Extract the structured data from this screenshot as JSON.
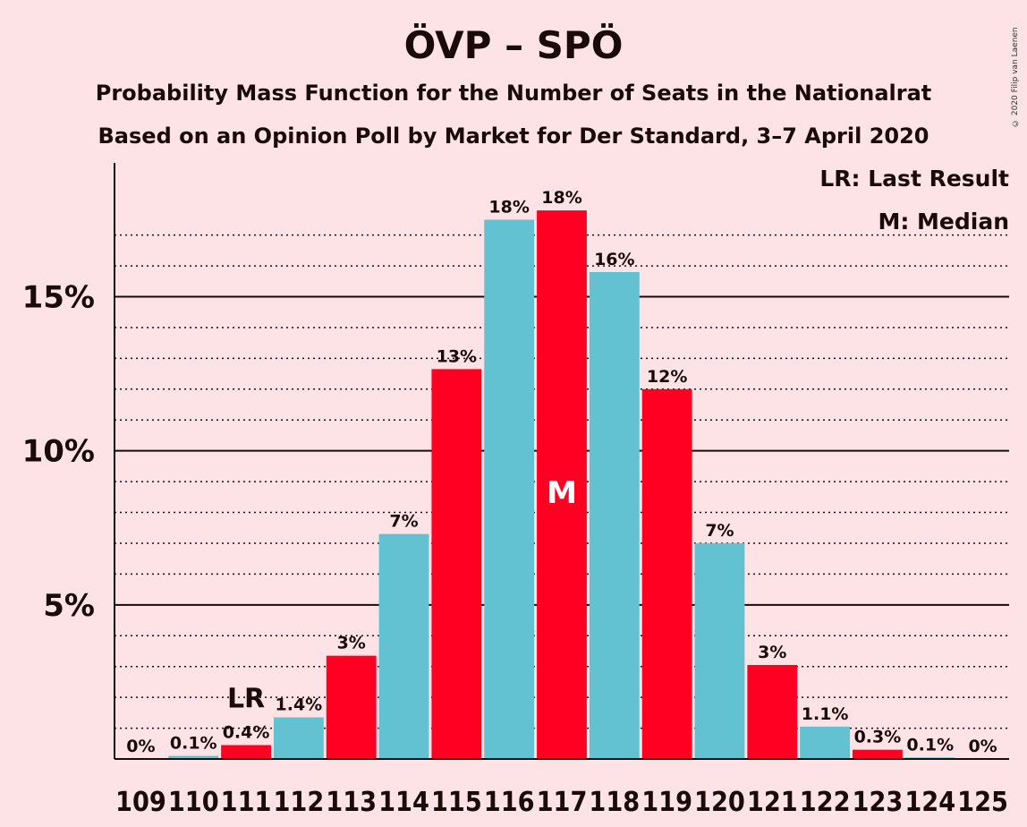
{
  "title": "ÖVP – SPÖ",
  "subtitle": "Probability Mass Function for the Number of Seats in the Nationalrat",
  "subtitle2": "Based on an Opinion Poll by Market for Der Standard, 3–7 April 2020",
  "copyright": "© 2020 Filip van Laenen",
  "legend": {
    "lr": "LR: Last Result",
    "median": "M: Median"
  },
  "colors": {
    "background": "#fde3e5",
    "bar_a": "#62c2d1",
    "bar_b": "#ff0022",
    "text": "#1a0a0a"
  },
  "chart_data": {
    "type": "bar",
    "categories": [
      "109",
      "110",
      "111",
      "112",
      "113",
      "114",
      "115",
      "116",
      "117",
      "118",
      "119",
      "120",
      "121",
      "122",
      "123",
      "124",
      "125"
    ],
    "values": [
      0,
      0.1,
      0.45,
      1.35,
      3.35,
      7.3,
      12.65,
      17.5,
      17.8,
      15.8,
      12.0,
      7.0,
      3.05,
      1.05,
      0.3,
      0.05,
      0
    ],
    "data_labels": [
      "0%",
      "0.1%",
      "0.4%",
      "1.4%",
      "3%",
      "7%",
      "13%",
      "18%",
      "18%",
      "16%",
      "12%",
      "7%",
      "3%",
      "1.1%",
      "0.3%",
      "0.1%",
      "0%"
    ],
    "bar_colors": [
      "#62c2d1",
      "#62c2d1",
      "#ff0022",
      "#62c2d1",
      "#ff0022",
      "#62c2d1",
      "#ff0022",
      "#62c2d1",
      "#ff0022",
      "#62c2d1",
      "#ff0022",
      "#62c2d1",
      "#ff0022",
      "#62c2d1",
      "#ff0022",
      "#62c2d1",
      "#ff0022"
    ],
    "ylim": [
      0,
      19.4
    ],
    "y_ticks": [
      5,
      10,
      15
    ],
    "y_tick_labels": [
      "5%",
      "10%",
      "15%"
    ],
    "minor_gridlines": [
      1,
      2,
      3,
      4,
      6,
      7,
      8,
      9,
      11,
      12,
      13,
      14,
      16,
      17
    ],
    "last_result": {
      "category": "111",
      "label": "LR"
    },
    "median": {
      "category": "117",
      "label": "M"
    },
    "xlabel": "",
    "ylabel": ""
  }
}
